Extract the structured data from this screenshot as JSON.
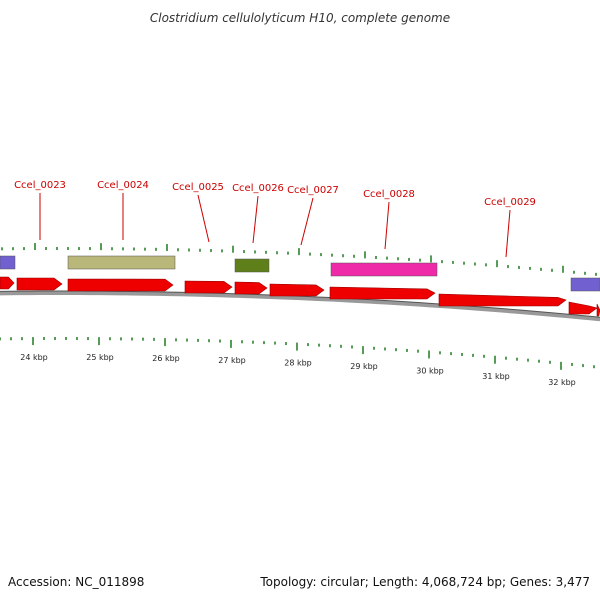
{
  "title": "Clostridium cellulolyticum H10, complete genome",
  "footer": {
    "accession": "Accession: NC_011898",
    "summary": "Topology: circular; Length: 4,068,724 bp; Genes: 3,477"
  },
  "colors": {
    "cds": "#ee0000",
    "tick": "#1e7a1e",
    "label": "#cc0000",
    "backbone": "#777777",
    "feature_khaki": "#b9b77a",
    "feature_olive": "#5f7f1a",
    "feature_magenta": "#ee2aa8",
    "feature_blue": "#7060d0"
  },
  "genes": [
    {
      "id": "Ccel_0023"
    },
    {
      "id": "Ccel_0024"
    },
    {
      "id": "Ccel_0025"
    },
    {
      "id": "Ccel_0026"
    },
    {
      "id": "Ccel_0027"
    },
    {
      "id": "Ccel_0028"
    },
    {
      "id": "Ccel_0029"
    }
  ],
  "kbp_labels": [
    "24 kbp",
    "25 kbp",
    "26 kbp",
    "27 kbp",
    "28 kbp",
    "29 kbp",
    "30 kbp",
    "31 kbp",
    "32 kbp"
  ]
}
